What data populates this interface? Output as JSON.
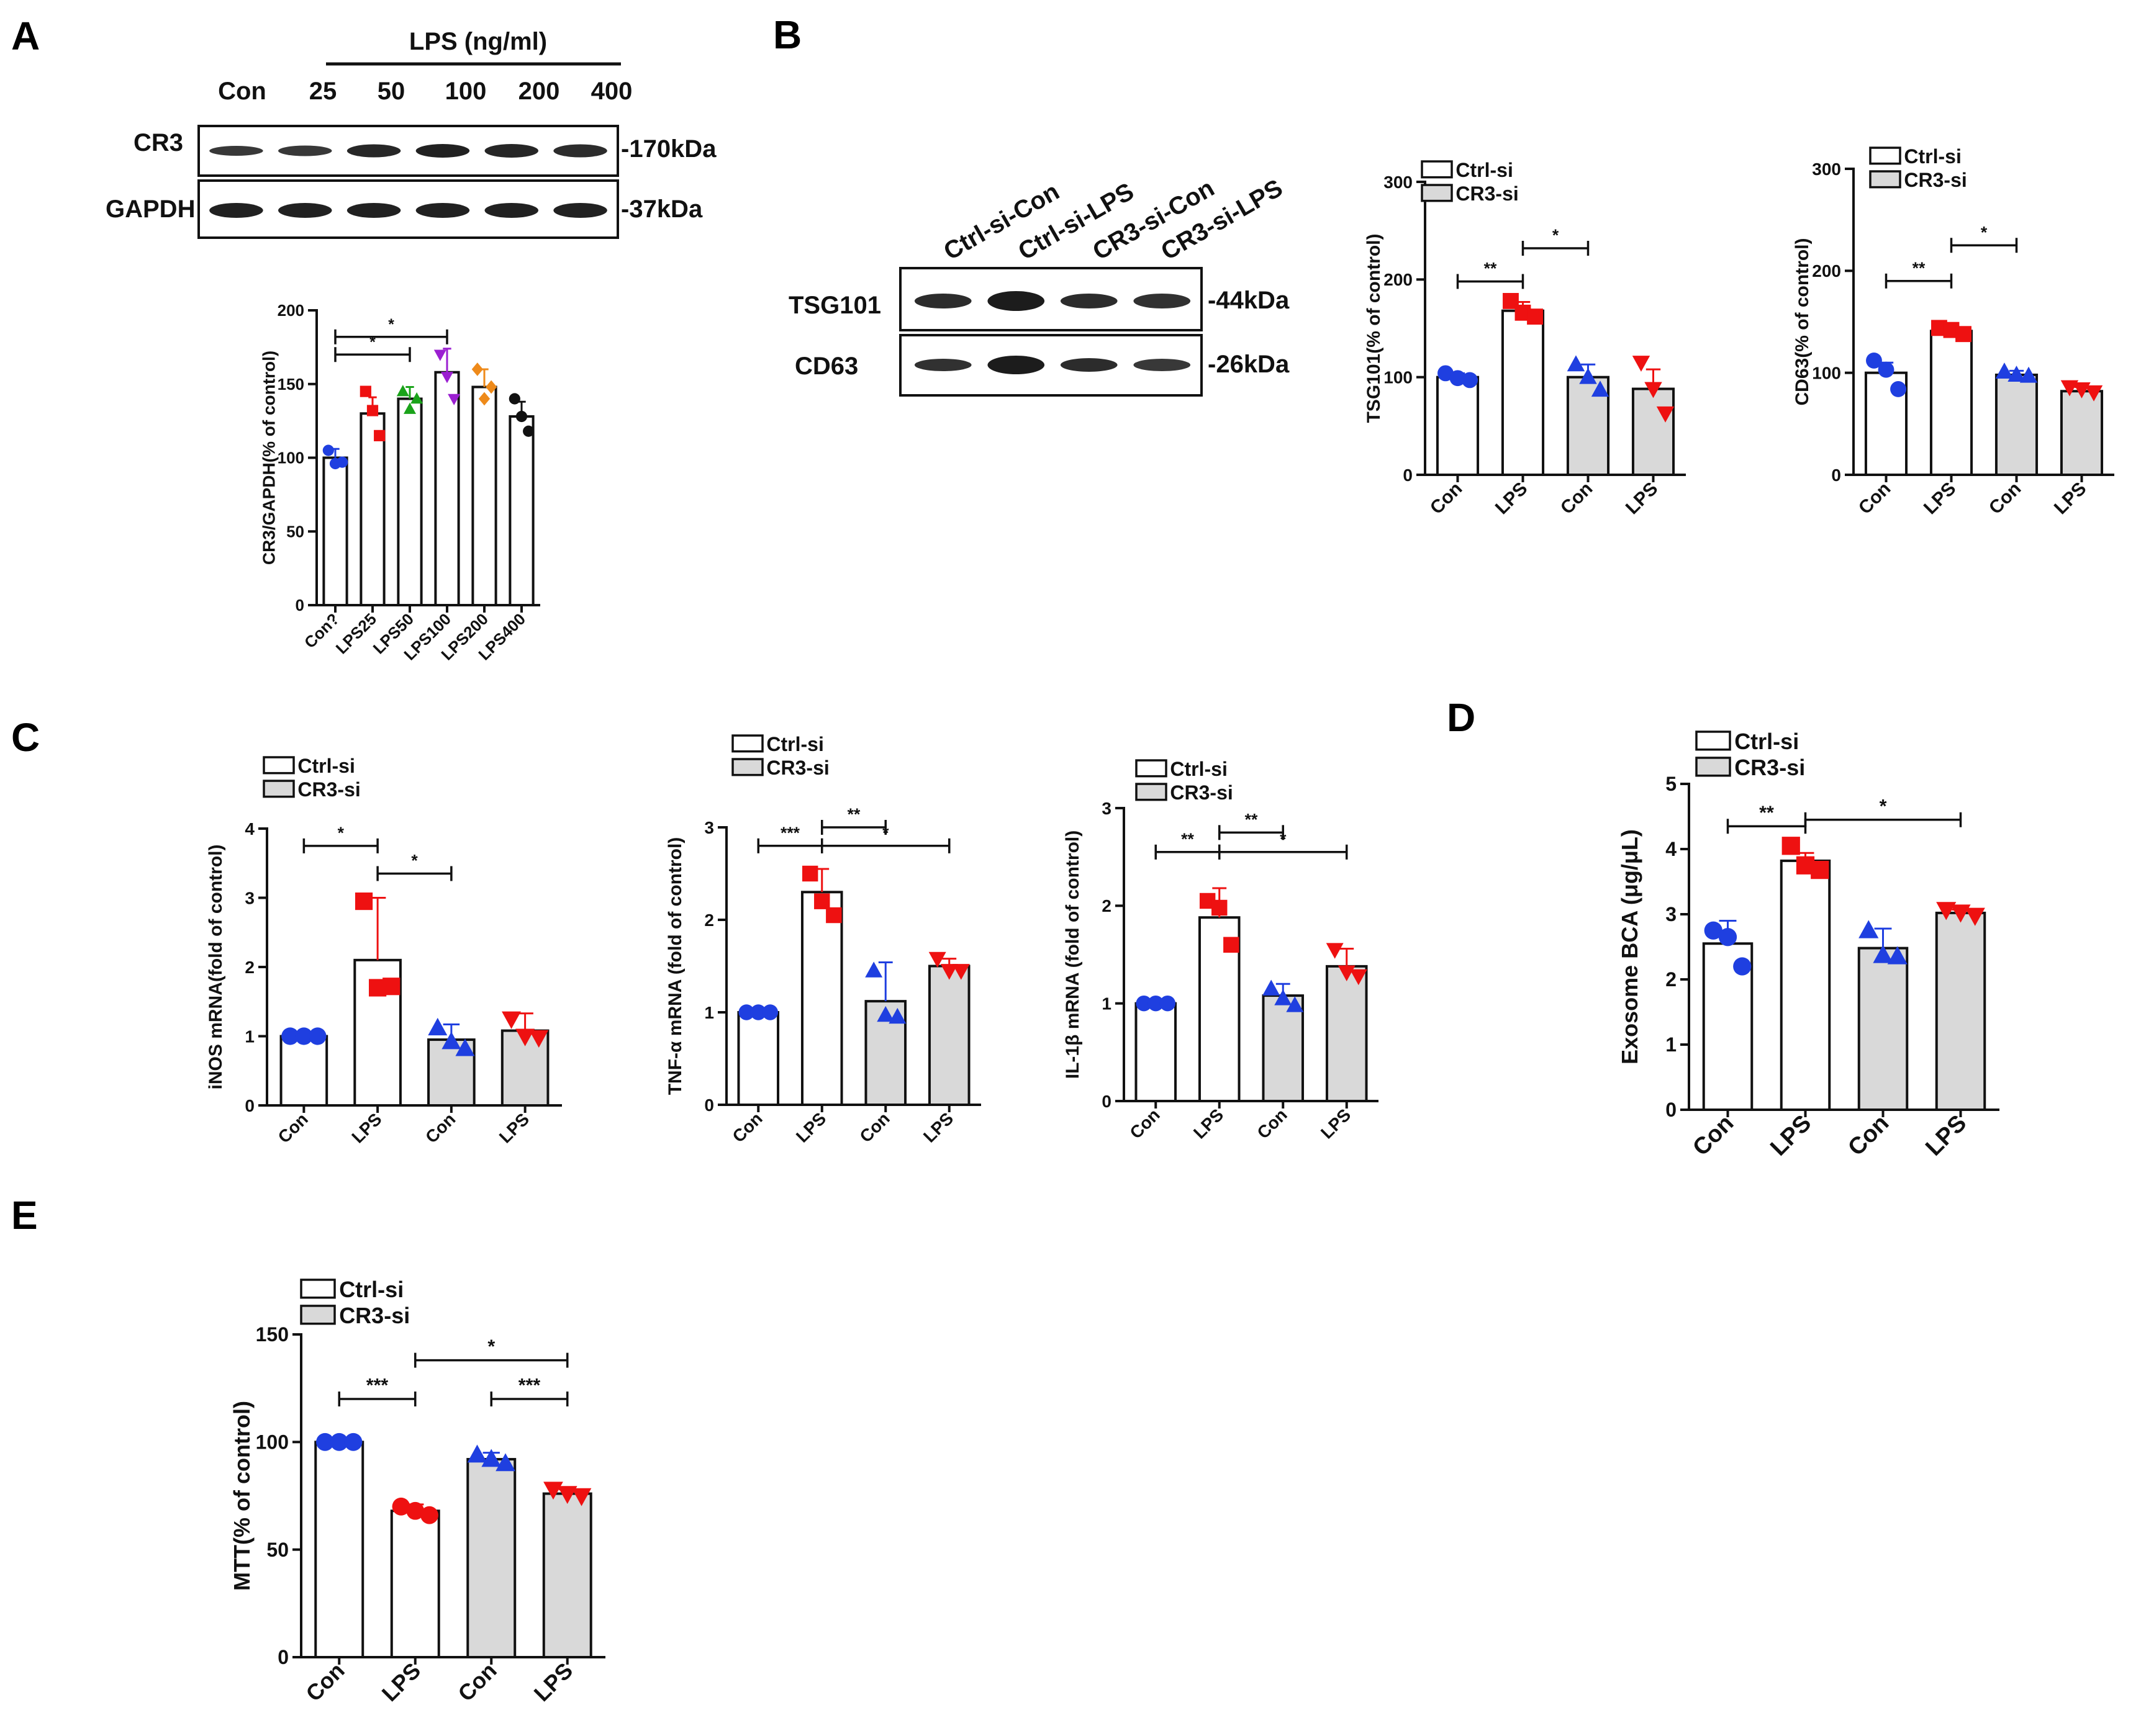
{
  "panels": {
    "A": {
      "letter": "A",
      "blot": {
        "header": "LPS (ng/ml)",
        "lanes": [
          "Con",
          "25",
          "50",
          "100",
          "200",
          "400"
        ],
        "rows": [
          {
            "label": "CR3",
            "marker": "-170kDa"
          },
          {
            "label": "GAPDH",
            "marker": "-37kDa"
          }
        ]
      }
    },
    "B": {
      "letter": "B",
      "blot": {
        "lanes": [
          "Ctrl-si-Con",
          "Ctrl-si-LPS",
          "CR3-si-Con",
          "CR3-si-LPS"
        ],
        "rows": [
          {
            "label": "TSG101",
            "marker": "-44kDa"
          },
          {
            "label": "CD63",
            "marker": "-26kDa"
          }
        ]
      }
    },
    "C": {
      "letter": "C"
    },
    "D": {
      "letter": "D"
    },
    "E": {
      "letter": "E"
    }
  },
  "chart_data": [
    {
      "id": "A-chart",
      "type": "bar",
      "ylabel": "CR3/GAPDH(% of control)",
      "ylim": [
        0,
        200
      ],
      "yticks": [
        0,
        50,
        100,
        150,
        200
      ],
      "categories": [
        "Con?",
        "LPS25",
        "LPS50",
        "LPS100",
        "LPS200",
        "LPS400"
      ],
      "values": [
        100,
        130,
        140,
        158,
        148,
        128
      ],
      "errors": [
        6,
        11,
        8,
        16,
        12,
        10
      ],
      "point_colors": [
        "#1f3fe0",
        "#ee1111",
        "#1aa31a",
        "#9b1fd1",
        "#ee8a1a",
        "#111111"
      ],
      "markers": [
        "circle",
        "square",
        "triangle",
        "tri-down",
        "diamond",
        "circle"
      ],
      "points": [
        [
          105,
          96,
          97
        ],
        [
          145,
          132,
          115
        ],
        [
          145,
          133,
          140
        ],
        [
          170,
          155,
          140
        ],
        [
          160,
          140,
          148
        ],
        [
          140,
          128,
          118
        ]
      ],
      "fills": [
        "#ffffff",
        "#ffffff",
        "#ffffff",
        "#ffffff",
        "#ffffff",
        "#ffffff"
      ],
      "legend": [],
      "sig": [
        {
          "from": 0,
          "to": 3,
          "y": 182,
          "label": "*"
        },
        {
          "from": 0,
          "to": 2,
          "y": 170,
          "label": "*"
        }
      ]
    },
    {
      "id": "B-tsg",
      "type": "bar",
      "ylabel": "TSG101(% of control)",
      "ylim": [
        0,
        300
      ],
      "yticks": [
        0,
        100,
        200,
        300
      ],
      "categories": [
        "Con",
        "LPS",
        "Con",
        "LPS"
      ],
      "values": [
        100,
        168,
        100,
        88
      ],
      "errors": [
        4,
        9,
        13,
        20
      ],
      "point_colors": [
        "#1f3fe0",
        "#ee1111",
        "#1f3fe0",
        "#ee1111"
      ],
      "markers": [
        "circle",
        "square",
        "triangle",
        "tri-down"
      ],
      "points": [
        [
          104,
          99,
          97
        ],
        [
          178,
          166,
          162
        ],
        [
          113,
          100,
          87
        ],
        [
          115,
          88,
          63
        ]
      ],
      "fills": [
        "#ffffff",
        "#ffffff",
        "#d9d9d9",
        "#d9d9d9"
      ],
      "legend": [
        {
          "label": "Ctrl-si",
          "fill": "#ffffff"
        },
        {
          "label": "CR3-si",
          "fill": "#d9d9d9"
        }
      ],
      "sig": [
        {
          "from": 0,
          "to": 1,
          "y": 198,
          "label": "**"
        },
        {
          "from": 1,
          "to": 2,
          "y": 232,
          "label": "*"
        }
      ]
    },
    {
      "id": "B-cd63",
      "type": "bar",
      "ylabel": "CD63(% of control)",
      "ylim": [
        0,
        300
      ],
      "yticks": [
        0,
        100,
        200,
        300
      ],
      "categories": [
        "Con",
        "LPS",
        "Con",
        "LPS"
      ],
      "values": [
        100,
        141,
        98,
        82
      ],
      "errors": [
        10,
        3,
        4,
        4
      ],
      "point_colors": [
        "#1f3fe0",
        "#ee1111",
        "#1f3fe0",
        "#ee1111"
      ],
      "markers": [
        "circle",
        "square",
        "triangle",
        "tri-down"
      ],
      "points": [
        [
          112,
          103,
          84
        ],
        [
          144,
          142,
          138
        ],
        [
          101,
          98,
          97
        ],
        [
          86,
          84,
          81
        ]
      ],
      "fills": [
        "#ffffff",
        "#ffffff",
        "#d9d9d9",
        "#d9d9d9"
      ],
      "legend": [
        {
          "label": "Ctrl-si",
          "fill": "#ffffff"
        },
        {
          "label": "CR3-si",
          "fill": "#d9d9d9"
        }
      ],
      "sig": [
        {
          "from": 0,
          "to": 1,
          "y": 190,
          "label": "**"
        },
        {
          "from": 1,
          "to": 2,
          "y": 225,
          "label": "*"
        }
      ]
    },
    {
      "id": "C-inos",
      "type": "bar",
      "ylabel": "iNOS mRNA(fold of control)",
      "ylim": [
        0,
        4
      ],
      "yticks": [
        0,
        1,
        2,
        3,
        4
      ],
      "categories": [
        "Con",
        "LPS",
        "Con",
        "LPS"
      ],
      "values": [
        1.0,
        2.1,
        0.95,
        1.08
      ],
      "errors": [
        0.02,
        0.9,
        0.22,
        0.25
      ],
      "point_colors": [
        "#1f3fe0",
        "#ee1111",
        "#1f3fe0",
        "#ee1111"
      ],
      "markers": [
        "circle",
        "square",
        "triangle",
        "tri-down"
      ],
      "points": [
        [
          1.0,
          1.0,
          1.0
        ],
        [
          2.95,
          1.7,
          1.72
        ],
        [
          1.12,
          0.92,
          0.82
        ],
        [
          1.25,
          1.0,
          0.98
        ]
      ],
      "fills": [
        "#ffffff",
        "#ffffff",
        "#d9d9d9",
        "#d9d9d9"
      ],
      "legend": [
        {
          "label": "Ctrl-si",
          "fill": "#ffffff"
        },
        {
          "label": "CR3-si",
          "fill": "#d9d9d9"
        }
      ],
      "sig": [
        {
          "from": 0,
          "to": 1,
          "y": 3.75,
          "label": "*"
        },
        {
          "from": 1,
          "to": 2,
          "y": 3.35,
          "label": "*"
        }
      ]
    },
    {
      "id": "C-tnf",
      "type": "bar",
      "ylabel": "TNF-α mRNA  (fold of control)",
      "ylim": [
        0,
        3
      ],
      "yticks": [
        0,
        1,
        2,
        3
      ],
      "categories": [
        "Con",
        "LPS",
        "Con",
        "LPS"
      ],
      "values": [
        1.0,
        2.3,
        1.12,
        1.5
      ],
      "errors": [
        0.02,
        0.25,
        0.42,
        0.08
      ],
      "point_colors": [
        "#1f3fe0",
        "#ee1111",
        "#1f3fe0",
        "#ee1111"
      ],
      "markers": [
        "circle",
        "square",
        "triangle",
        "tri-down"
      ],
      "points": [
        [
          1.0,
          1.0,
          1.0
        ],
        [
          2.5,
          2.2,
          2.05
        ],
        [
          1.45,
          0.97,
          0.95
        ],
        [
          1.58,
          1.45,
          1.45
        ]
      ],
      "fills": [
        "#ffffff",
        "#ffffff",
        "#d9d9d9",
        "#d9d9d9"
      ],
      "legend": [
        {
          "label": "Ctrl-si",
          "fill": "#ffffff"
        },
        {
          "label": "CR3-si",
          "fill": "#d9d9d9"
        }
      ],
      "sig": [
        {
          "from": 0,
          "to": 1,
          "y": 2.8,
          "label": "***"
        },
        {
          "from": 1,
          "to": 2,
          "y": 3.0,
          "label": "**"
        },
        {
          "from": 1,
          "to": 3,
          "y": 2.8,
          "label": "*"
        }
      ]
    },
    {
      "id": "C-il1b",
      "type": "bar",
      "ylabel": "IL-1β mRNA (fold of control)",
      "ylim": [
        0,
        3
      ],
      "yticks": [
        0,
        1,
        2,
        3
      ],
      "categories": [
        "Con",
        "LPS",
        "Con",
        "LPS"
      ],
      "values": [
        1.0,
        1.88,
        1.08,
        1.38
      ],
      "errors": [
        0.02,
        0.3,
        0.12,
        0.18
      ],
      "point_colors": [
        "#1f3fe0",
        "#ee1111",
        "#1f3fe0",
        "#ee1111"
      ],
      "markers": [
        "circle",
        "square",
        "triangle",
        "tri-down"
      ],
      "points": [
        [
          1.0,
          1.0,
          1.0
        ],
        [
          2.05,
          1.98,
          1.6
        ],
        [
          1.15,
          1.05,
          0.98
        ],
        [
          1.55,
          1.32,
          1.28
        ]
      ],
      "fills": [
        "#ffffff",
        "#ffffff",
        "#d9d9d9",
        "#d9d9d9"
      ],
      "legend": [
        {
          "label": "Ctrl-si",
          "fill": "#ffffff"
        },
        {
          "label": "CR3-si",
          "fill": "#d9d9d9"
        }
      ],
      "sig": [
        {
          "from": 0,
          "to": 1,
          "y": 2.55,
          "label": "**"
        },
        {
          "from": 1,
          "to": 2,
          "y": 2.75,
          "label": "**"
        },
        {
          "from": 1,
          "to": 3,
          "y": 2.55,
          "label": "*"
        }
      ]
    },
    {
      "id": "D-bca",
      "type": "bar",
      "ylabel": "Exosome BCA (μg/μL)",
      "ylim": [
        0,
        5
      ],
      "yticks": [
        0,
        1,
        2,
        3,
        4,
        5
      ],
      "categories": [
        "Con",
        "LPS",
        "Con",
        "LPS"
      ],
      "values": [
        2.55,
        3.82,
        2.48,
        3.02
      ],
      "errors": [
        0.35,
        0.12,
        0.3,
        0.05
      ],
      "point_colors": [
        "#1f3fe0",
        "#ee1111",
        "#1f3fe0",
        "#ee1111"
      ],
      "markers": [
        "circle",
        "square",
        "triangle",
        "tri-down"
      ],
      "points": [
        [
          2.75,
          2.65,
          2.2
        ],
        [
          4.05,
          3.75,
          3.68
        ],
        [
          2.75,
          2.37,
          2.35
        ],
        [
          3.07,
          3.03,
          2.98
        ]
      ],
      "fills": [
        "#ffffff",
        "#ffffff",
        "#d9d9d9",
        "#d9d9d9"
      ],
      "legend": [
        {
          "label": "Ctrl-si",
          "fill": "#ffffff"
        },
        {
          "label": "CR3-si",
          "fill": "#d9d9d9"
        }
      ],
      "sig": [
        {
          "from": 0,
          "to": 1,
          "y": 4.35,
          "label": "**"
        },
        {
          "from": 1,
          "to": 3,
          "y": 4.45,
          "label": "*"
        }
      ]
    },
    {
      "id": "E-mtt",
      "type": "bar",
      "ylabel": "MTT(% of control)",
      "ylim": [
        0,
        150
      ],
      "yticks": [
        0,
        50,
        100,
        150
      ],
      "categories": [
        "Con",
        "LPS",
        "Con",
        "LPS"
      ],
      "values": [
        100,
        68,
        92,
        76
      ],
      "errors": [
        0.5,
        3,
        3,
        2
      ],
      "point_colors": [
        "#1f3fe0",
        "#ee1111",
        "#1f3fe0",
        "#ee1111"
      ],
      "markers": [
        "circle",
        "circle",
        "triangle",
        "tri-down"
      ],
      "points": [
        [
          100,
          100,
          100
        ],
        [
          70,
          68,
          66
        ],
        [
          94,
          92,
          90
        ],
        [
          78,
          76,
          75
        ]
      ],
      "fills": [
        "#ffffff",
        "#ffffff",
        "#d9d9d9",
        "#d9d9d9"
      ],
      "legend": [
        {
          "label": "Ctrl-si",
          "fill": "#ffffff"
        },
        {
          "label": "CR3-si",
          "fill": "#d9d9d9"
        }
      ],
      "sig": [
        {
          "from": 0,
          "to": 1,
          "y": 120,
          "label": "***"
        },
        {
          "from": 1,
          "to": 3,
          "y": 138,
          "label": "*"
        },
        {
          "from": 2,
          "to": 3,
          "y": 120,
          "label": "***"
        }
      ]
    }
  ]
}
